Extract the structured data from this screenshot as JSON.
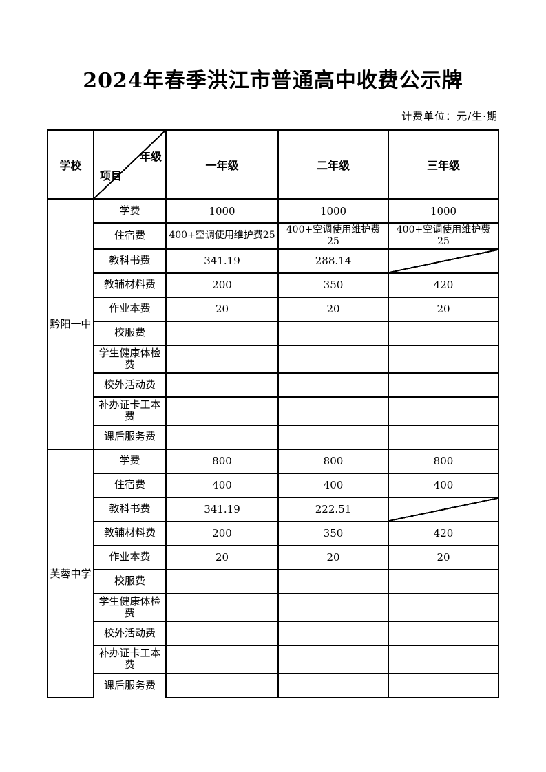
{
  "page": {
    "title": "2024年春季洪江市普通高中收费公示牌",
    "unit_note": "计费单位：元/生·期"
  },
  "colors": {
    "text": "#000000",
    "border": "#000000",
    "background": "#ffffff"
  },
  "table": {
    "header": {
      "school_label": "学校",
      "diagonal_cell": {
        "top_right": "年级",
        "bottom_left": "项目"
      },
      "grade_columns": [
        "一年级",
        "二年级",
        "三年级"
      ]
    },
    "schools": [
      {
        "name": "黔阳一中",
        "rows": [
          {
            "label": "学费",
            "values": [
              "1000",
              "1000",
              "1000"
            ]
          },
          {
            "label": "住宿费",
            "values": [
              "400+空调使用维护费25",
              "400+空调使用维护费\n25",
              "400+空调使用维护费\n25"
            ]
          },
          {
            "label": "教科书费",
            "values": [
              "341.19",
              "288.14",
              ""
            ],
            "diagonal_cols": [
              2
            ]
          },
          {
            "label": "教辅材料费",
            "values": [
              "200",
              "350",
              "420"
            ]
          },
          {
            "label": "作业本费",
            "values": [
              "20",
              "20",
              "20"
            ]
          },
          {
            "label": "校服费",
            "values": [
              "",
              "",
              ""
            ]
          },
          {
            "label": "学生健康体检费",
            "values": [
              "",
              "",
              ""
            ]
          },
          {
            "label": "校外活动费",
            "values": [
              "",
              "",
              ""
            ]
          },
          {
            "label": "补办证卡工本费",
            "values": [
              "",
              "",
              ""
            ]
          },
          {
            "label": "课后服务费",
            "values": [
              "",
              "",
              ""
            ]
          }
        ]
      },
      {
        "name": "芙蓉中学",
        "rows": [
          {
            "label": "学费",
            "values": [
              "800",
              "800",
              "800"
            ]
          },
          {
            "label": "住宿费",
            "values": [
              "400",
              "400",
              "400"
            ]
          },
          {
            "label": "教科书费",
            "values": [
              "341.19",
              "222.51",
              ""
            ],
            "diagonal_cols": [
              2
            ]
          },
          {
            "label": "教辅材料费",
            "values": [
              "200",
              "350",
              "420"
            ]
          },
          {
            "label": "作业本费",
            "values": [
              "20",
              "20",
              "20"
            ]
          },
          {
            "label": "校服费",
            "values": [
              "",
              "",
              ""
            ]
          },
          {
            "label": "学生健康体检费",
            "values": [
              "",
              "",
              ""
            ]
          },
          {
            "label": "校外活动费",
            "values": [
              "",
              "",
              ""
            ]
          },
          {
            "label": "补办证卡工本费",
            "values": [
              "",
              "",
              ""
            ]
          },
          {
            "label": "课后服务费",
            "values": [
              "",
              "",
              ""
            ]
          }
        ]
      }
    ]
  }
}
